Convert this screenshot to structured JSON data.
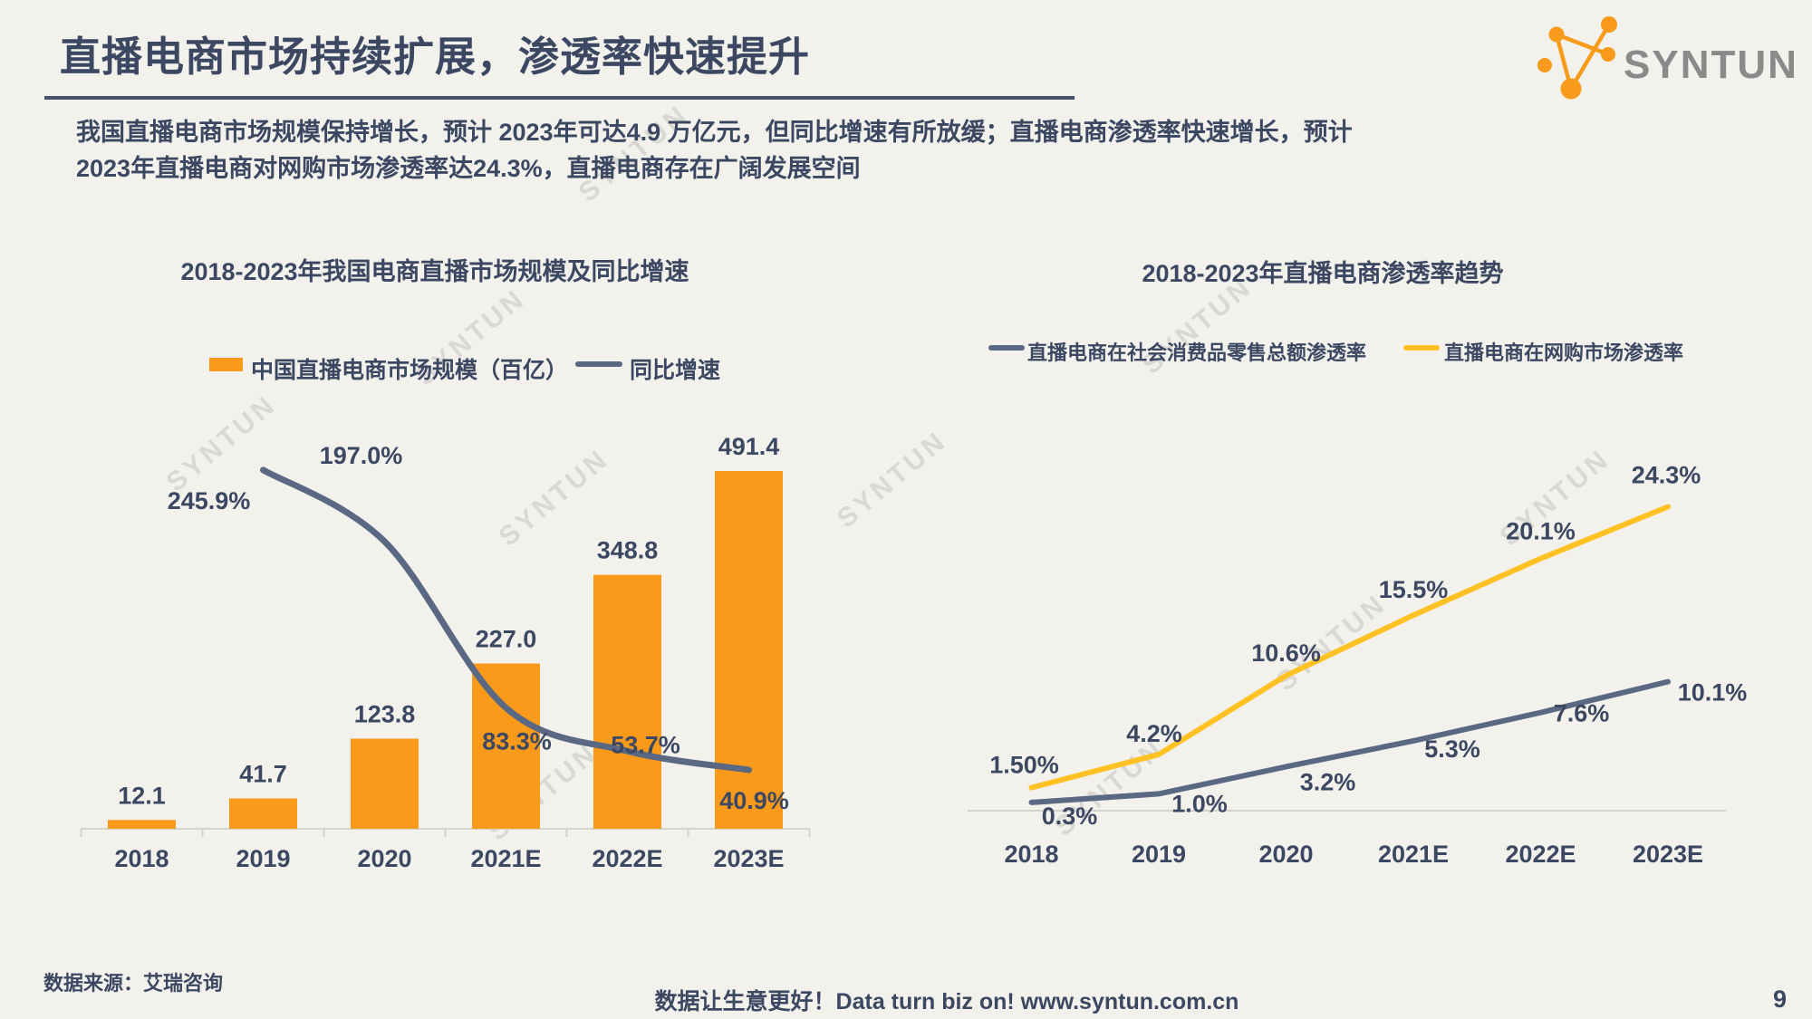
{
  "page": {
    "background": "#f2f1ec",
    "page_number": "9"
  },
  "header": {
    "title": "直播电商市场持续扩展，渗透率快速提升",
    "accent_color": "#3c4862"
  },
  "logo": {
    "text": "SYNTUN",
    "brand_orange": "#f89b1b",
    "brand_gray": "#8a8a8a"
  },
  "intro": {
    "line1": "我国直播电商市场规模保持增长，预计 2023年可达4.9 万亿元，但同比增速有所放缓；直播电商渗透率快速增长，预计",
    "line2": "2023年直播电商对网购市场渗透率达24.3%，直播电商存在广阔发展空间"
  },
  "watermark": {
    "text": "SYNTUN"
  },
  "footer": {
    "source": "数据来源：艾瑞咨询",
    "slogan": "数据让生意更好！Data turn biz on!  www.syntun.com.cn"
  },
  "chart_data": [
    {
      "type": "bar",
      "title": "2018-2023年我国电商直播市场规模及同比增速",
      "categories": [
        "2018",
        "2019",
        "2020",
        "2021E",
        "2022E",
        "2023E"
      ],
      "series": [
        {
          "name": "中国直播电商市场规模（百亿）",
          "type": "bar",
          "color": "#f99a1b",
          "values": [
            12.1,
            41.7,
            123.8,
            227.0,
            348.8,
            491.4
          ],
          "labels": [
            "12.1",
            "41.7",
            "123.8",
            "227.0",
            "348.8",
            "491.4"
          ]
        },
        {
          "name": "同比增速",
          "type": "line",
          "color": "#5a6884",
          "values": [
            null,
            245.9,
            197.0,
            83.3,
            53.7,
            40.9
          ],
          "labels": [
            "245.9%",
            "197.0%",
            "83.3%",
            "53.7%",
            "40.9%"
          ]
        }
      ],
      "legend_position": "top",
      "grid": false,
      "ylim_primary": [
        0,
        500
      ],
      "ylim_secondary_pct": [
        0,
        300
      ]
    },
    {
      "type": "line",
      "title": "2018-2023年直播电商渗透率趋势",
      "categories": [
        "2018",
        "2019",
        "2020",
        "2021E",
        "2022E",
        "2023E"
      ],
      "series": [
        {
          "name": "直播电商在社会消费品零售总额渗透率",
          "color": "#5a6884",
          "values": [
            0.3,
            1.0,
            3.2,
            5.3,
            7.6,
            10.1
          ],
          "labels": [
            "0.3%",
            "1.0%",
            "3.2%",
            "5.3%",
            "7.6%",
            "10.1%"
          ]
        },
        {
          "name": "直播电商在网购市场渗透率",
          "color": "#ffc123",
          "values": [
            1.5,
            4.2,
            10.6,
            15.5,
            20.1,
            24.3
          ],
          "labels": [
            "1.50%",
            "4.2%",
            "10.6%",
            "15.5%",
            "20.1%",
            "24.3%"
          ]
        }
      ],
      "legend_position": "top",
      "grid": false,
      "ylim_pct": [
        0,
        30
      ]
    }
  ]
}
